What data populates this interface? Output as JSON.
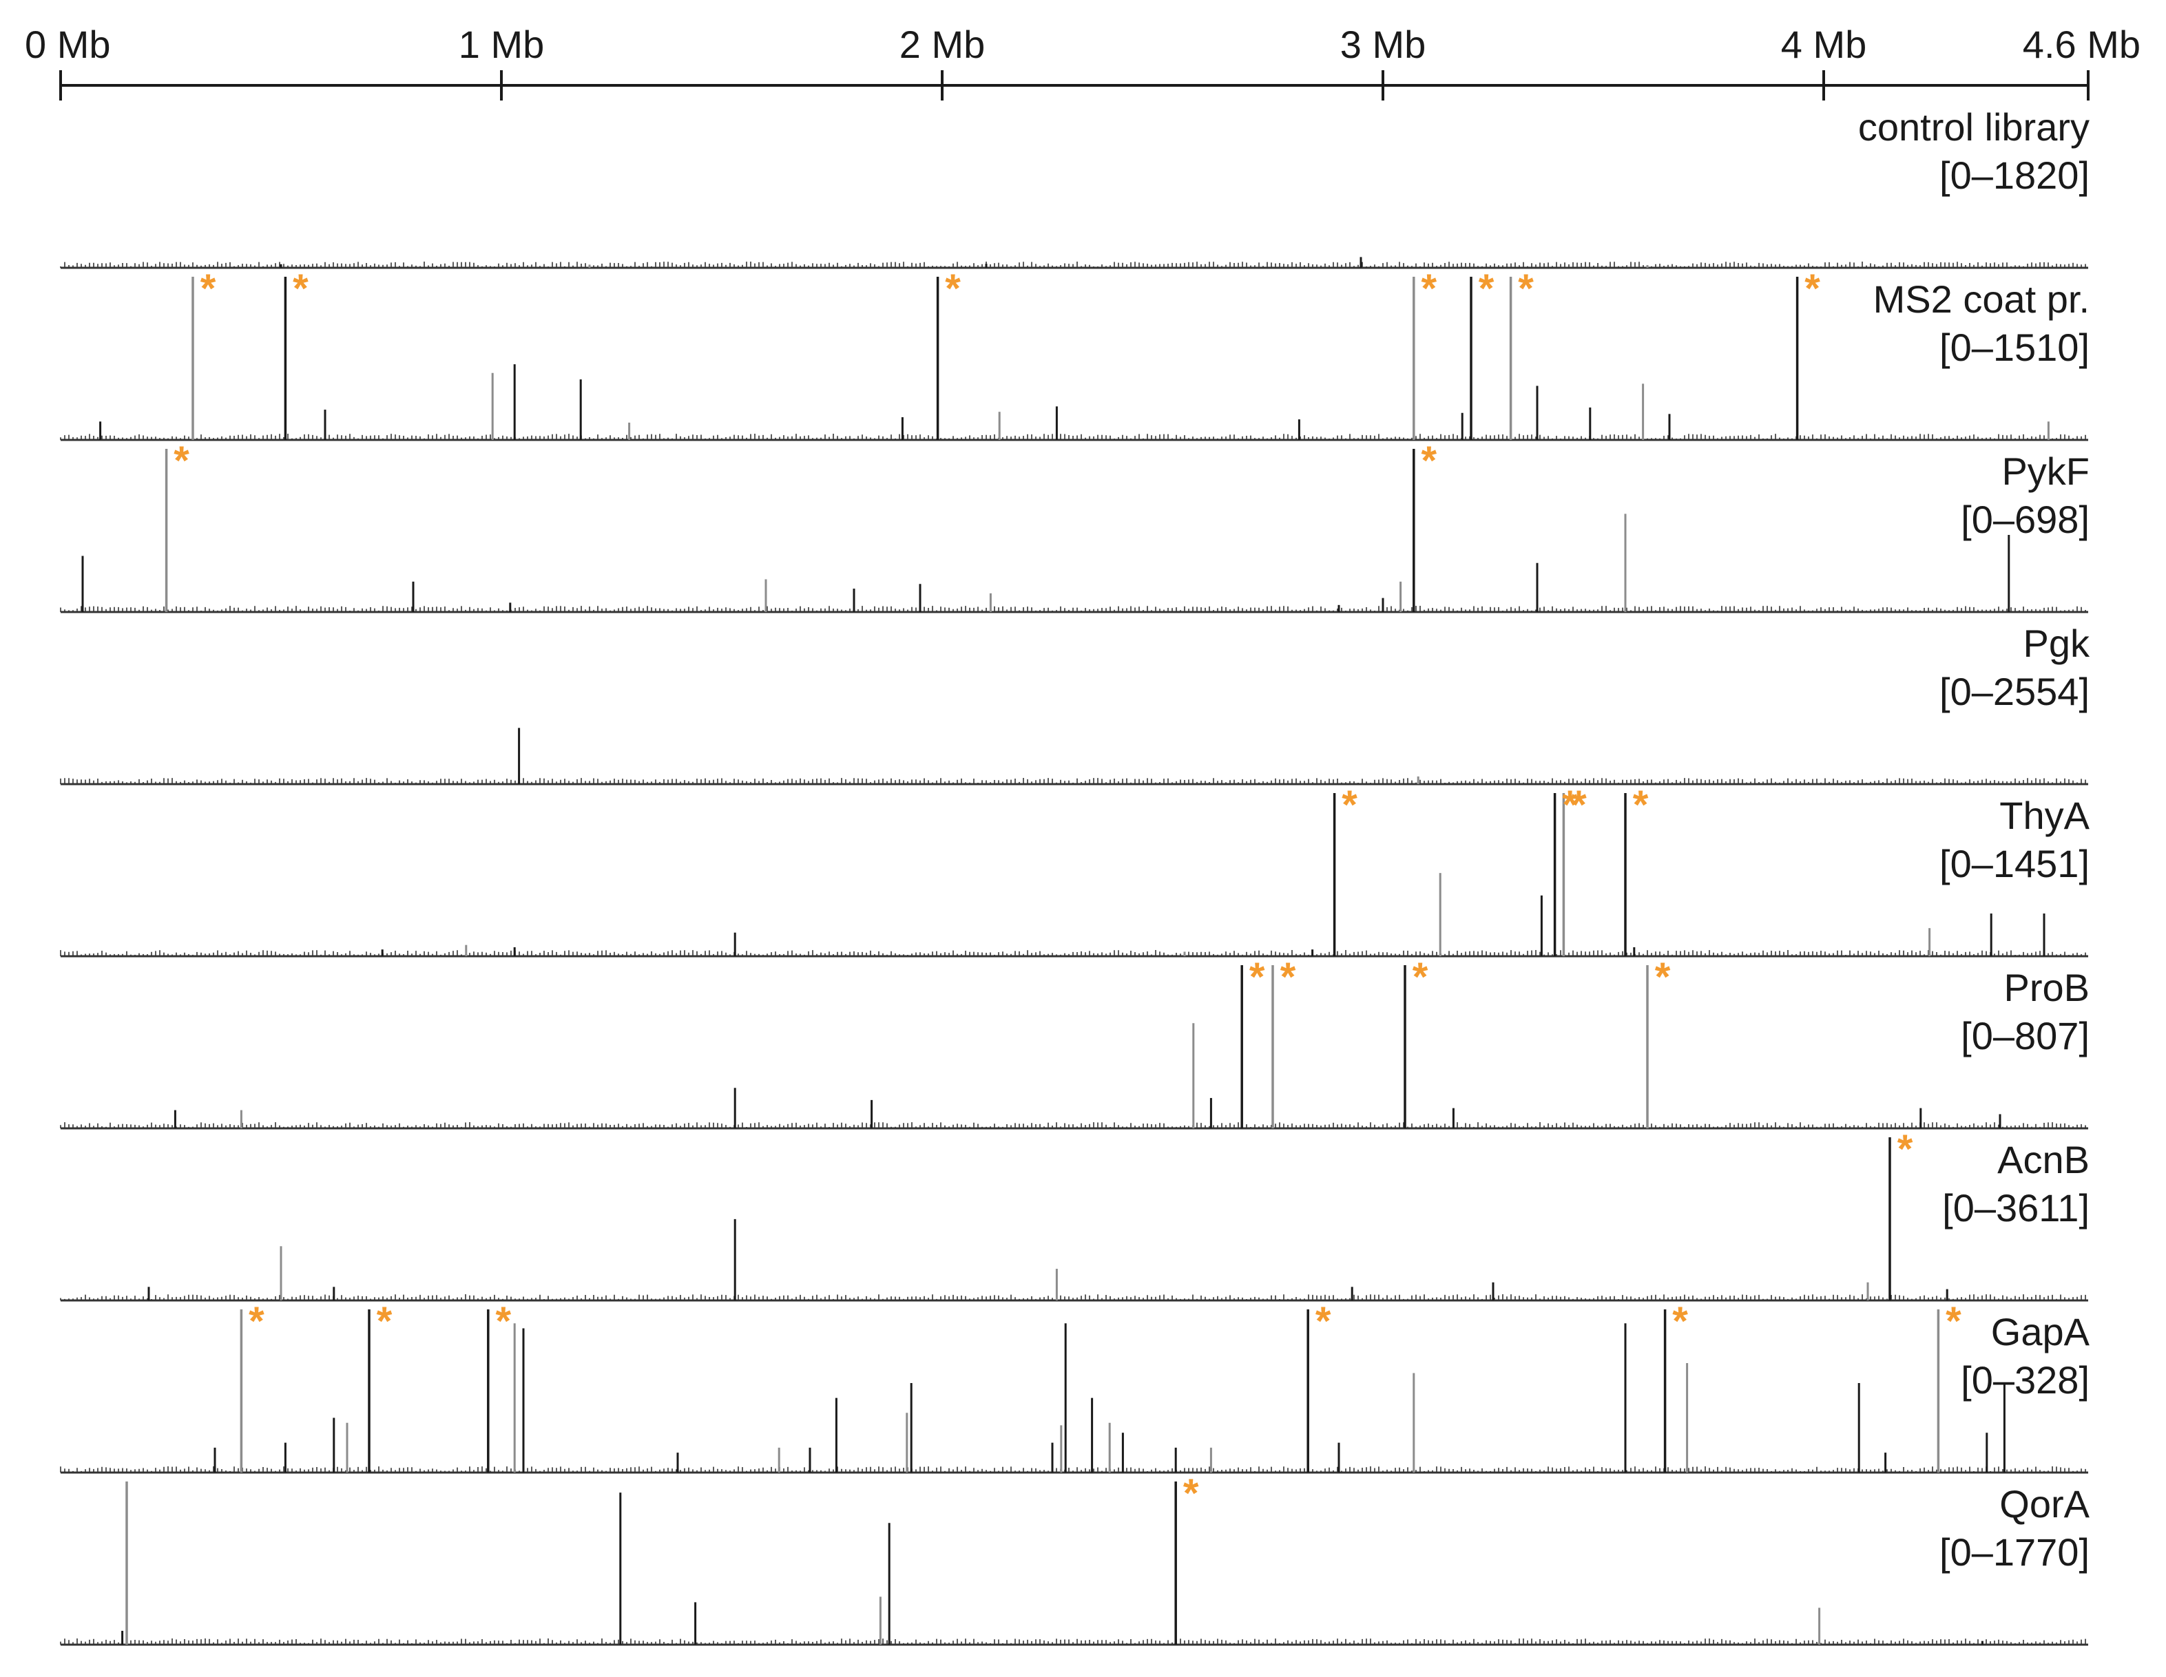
{
  "chart_data": {
    "type": "bar",
    "xaxis": {
      "range_mb": [
        0,
        4.6
      ],
      "ticks": [
        {
          "value": 0,
          "label": "0 Mb"
        },
        {
          "value": 1,
          "label": "1 Mb"
        },
        {
          "value": 2,
          "label": "2 Mb"
        },
        {
          "value": 3,
          "label": "3 Mb"
        },
        {
          "value": 4,
          "label": "4 Mb"
        },
        {
          "value": 4.6,
          "label": "4.6 Mb"
        }
      ]
    },
    "colors": {
      "peak": "#1a1a1a",
      "peak_gray": "#8c8c8c",
      "marker": "#f39a2e",
      "baseline": "#333333"
    },
    "marker_symbol": "*",
    "tracks": [
      {
        "name": "control library",
        "range_label": "[0–1820]",
        "ymax": 1820,
        "peaks": [
          [
            0.5,
            40
          ],
          [
            1.2,
            35
          ],
          [
            2.1,
            45
          ],
          [
            2.95,
            120
          ],
          [
            3.6,
            30
          ]
        ],
        "marked": []
      },
      {
        "name": "MS2 coat pr.",
        "range_label": "[0–1510]",
        "ymax": 1510,
        "peaks": [
          [
            0.09,
            170
          ],
          [
            0.3,
            1510
          ],
          [
            0.51,
            1510
          ],
          [
            0.6,
            280
          ],
          [
            0.98,
            620
          ],
          [
            1.03,
            700
          ],
          [
            1.18,
            560
          ],
          [
            1.29,
            160
          ],
          [
            1.91,
            210
          ],
          [
            1.99,
            1510
          ],
          [
            2.13,
            260
          ],
          [
            2.26,
            310
          ],
          [
            2.81,
            190
          ],
          [
            3.07,
            1510
          ],
          [
            3.18,
            250
          ],
          [
            3.2,
            1510
          ],
          [
            3.29,
            1510
          ],
          [
            3.35,
            500
          ],
          [
            3.47,
            300
          ],
          [
            3.59,
            520
          ],
          [
            3.65,
            240
          ],
          [
            3.94,
            1510
          ],
          [
            4.51,
            170
          ]
        ],
        "marked": [
          0.3,
          0.51,
          1.99,
          3.07,
          3.2,
          3.29,
          3.94
        ]
      },
      {
        "name": "PykF",
        "range_label": "[0–698]",
        "ymax": 698,
        "peaks": [
          [
            0.05,
            240
          ],
          [
            0.24,
            698
          ],
          [
            0.8,
            130
          ],
          [
            1.02,
            40
          ],
          [
            1.6,
            140
          ],
          [
            1.8,
            100
          ],
          [
            1.95,
            120
          ],
          [
            2.11,
            80
          ],
          [
            2.9,
            30
          ],
          [
            3.0,
            60
          ],
          [
            3.04,
            130
          ],
          [
            3.07,
            698
          ],
          [
            3.35,
            210
          ],
          [
            3.55,
            420
          ],
          [
            4.42,
            330
          ]
        ],
        "marked": [
          0.24,
          3.07
        ]
      },
      {
        "name": "Pgk",
        "range_label": "[0–2554]",
        "ymax": 2554,
        "peaks": [
          [
            1.04,
            880
          ],
          [
            3.08,
            120
          ]
        ],
        "marked": []
      },
      {
        "name": "ThyA",
        "range_label": "[0–1451]",
        "ymax": 1451,
        "peaks": [
          [
            0.73,
            60
          ],
          [
            0.92,
            100
          ],
          [
            1.03,
            80
          ],
          [
            1.53,
            210
          ],
          [
            2.55,
            40
          ],
          [
            2.84,
            60
          ],
          [
            2.89,
            1451
          ],
          [
            3.13,
            740
          ],
          [
            3.36,
            540
          ],
          [
            3.39,
            1451
          ],
          [
            3.41,
            1451
          ],
          [
            3.55,
            1451
          ],
          [
            3.57,
            80
          ],
          [
            4.24,
            250
          ],
          [
            4.38,
            380
          ],
          [
            4.5,
            380
          ]
        ],
        "marked": [
          2.89,
          3.39,
          3.41,
          3.55
        ]
      },
      {
        "name": "ProB",
        "range_label": "[0–807]",
        "ymax": 807,
        "peaks": [
          [
            0.26,
            90
          ],
          [
            0.41,
            90
          ],
          [
            1.53,
            200
          ],
          [
            1.84,
            140
          ],
          [
            2.57,
            520
          ],
          [
            2.61,
            150
          ],
          [
            2.68,
            807
          ],
          [
            2.75,
            807
          ],
          [
            3.05,
            807
          ],
          [
            3.16,
            100
          ],
          [
            3.6,
            807
          ],
          [
            4.22,
            100
          ],
          [
            4.4,
            70
          ]
        ],
        "marked": [
          2.68,
          2.75,
          3.05,
          3.6
        ]
      },
      {
        "name": "AcnB",
        "range_label": "[0–3611]",
        "ymax": 3611,
        "peaks": [
          [
            0.2,
            300
          ],
          [
            0.5,
            1200
          ],
          [
            0.62,
            300
          ],
          [
            1.53,
            1800
          ],
          [
            2.26,
            700
          ],
          [
            2.93,
            300
          ],
          [
            3.25,
            400
          ],
          [
            4.1,
            400
          ],
          [
            4.15,
            3611
          ],
          [
            4.28,
            250
          ]
        ],
        "marked": [
          4.15
        ]
      },
      {
        "name": "GapA",
        "range_label": "[0–328]",
        "ymax": 328,
        "peaks": [
          [
            0.35,
            50
          ],
          [
            0.41,
            328
          ],
          [
            0.51,
            60
          ],
          [
            0.62,
            110
          ],
          [
            0.65,
            100
          ],
          [
            0.7,
            328
          ],
          [
            0.97,
            328
          ],
          [
            1.03,
            300
          ],
          [
            1.05,
            290
          ],
          [
            1.4,
            40
          ],
          [
            1.63,
            50
          ],
          [
            1.7,
            50
          ],
          [
            1.76,
            150
          ],
          [
            1.92,
            120
          ],
          [
            1.93,
            180
          ],
          [
            2.25,
            60
          ],
          [
            2.27,
            95
          ],
          [
            2.28,
            300
          ],
          [
            2.34,
            150
          ],
          [
            2.38,
            100
          ],
          [
            2.41,
            80
          ],
          [
            2.53,
            50
          ],
          [
            2.61,
            50
          ],
          [
            2.83,
            328
          ],
          [
            2.9,
            60
          ],
          [
            3.07,
            200
          ],
          [
            3.55,
            300
          ],
          [
            3.64,
            328
          ],
          [
            3.69,
            220
          ],
          [
            4.08,
            180
          ],
          [
            4.14,
            40
          ],
          [
            4.26,
            328
          ],
          [
            4.37,
            80
          ],
          [
            4.41,
            180
          ]
        ],
        "marked": [
          0.41,
          0.7,
          0.97,
          2.83,
          3.64,
          4.26
        ]
      },
      {
        "name": "QorA",
        "range_label": "[0–1770]",
        "ymax": 1770,
        "peaks": [
          [
            0.14,
            150
          ],
          [
            0.15,
            1770
          ],
          [
            1.27,
            1650
          ],
          [
            1.44,
            460
          ],
          [
            1.86,
            520
          ],
          [
            1.88,
            1320
          ],
          [
            2.53,
            1770
          ],
          [
            3.99,
            400
          ],
          [
            4.36,
            40
          ]
        ],
        "marked": [
          2.53
        ]
      }
    ]
  }
}
